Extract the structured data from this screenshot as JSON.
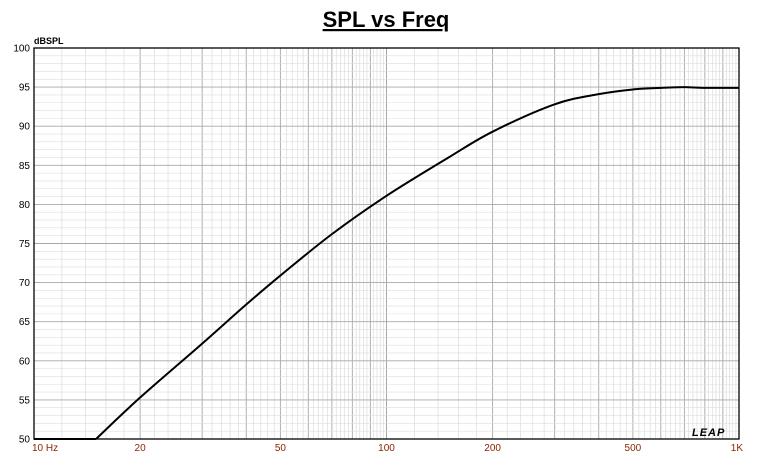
{
  "chart_data": {
    "type": "line",
    "title": "SPL vs Freq",
    "ylabel": "dBSPL",
    "xlabel": "",
    "x_scale": "log",
    "xlim": [
      10,
      1000
    ],
    "ylim": [
      50,
      100
    ],
    "grid": true,
    "y_ticks": [
      "50",
      "55",
      "60",
      "65",
      "70",
      "75",
      "80",
      "85",
      "90",
      "95",
      "100"
    ],
    "x_tick_labels": [
      {
        "value": 10,
        "label": "10  Hz"
      },
      {
        "value": 20,
        "label": "20"
      },
      {
        "value": 50,
        "label": "50"
      },
      {
        "value": 100,
        "label": "100"
      },
      {
        "value": 200,
        "label": "200"
      },
      {
        "value": 500,
        "label": "500"
      },
      {
        "value": 1000,
        "label": "1K"
      }
    ],
    "series": [
      {
        "color": "#000000",
        "points": [
          [
            15,
            50.0
          ],
          [
            20,
            55.3
          ],
          [
            30,
            62.2
          ],
          [
            40,
            67.2
          ],
          [
            50,
            70.9
          ],
          [
            70,
            76.2
          ],
          [
            100,
            81.1
          ],
          [
            150,
            86.0
          ],
          [
            200,
            89.3
          ],
          [
            300,
            92.8
          ],
          [
            400,
            94.1
          ],
          [
            500,
            94.7
          ],
          [
            600,
            94.9
          ],
          [
            700,
            95.0
          ],
          [
            800,
            94.9
          ],
          [
            1000,
            94.9
          ]
        ]
      }
    ],
    "logo_text": "LEAP"
  }
}
